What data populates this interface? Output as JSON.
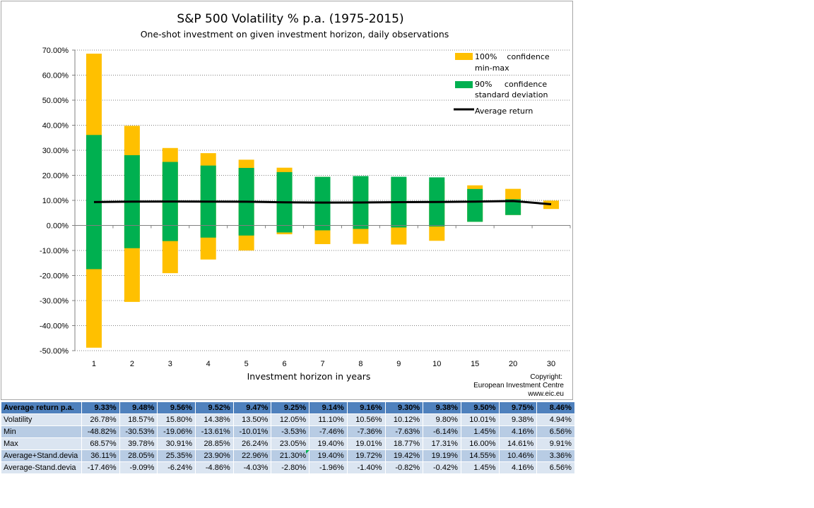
{
  "chart_data": {
    "type": "bar",
    "title": "S&P 500 Volatility % p.a. (1975-2015)",
    "subtitle": "One-shot investment on given investment horizon, daily observations",
    "xlabel": "Investment horizon in years",
    "ylabel": "",
    "categories": [
      "1",
      "2",
      "3",
      "4",
      "5",
      "6",
      "7",
      "8",
      "9",
      "10",
      "15",
      "20",
      "30"
    ],
    "ylim": [
      -50,
      70
    ],
    "yticks": [
      "-50.00%",
      "-40.00%",
      "-30.00%",
      "-20.00%",
      "-10.00%",
      "0.00%",
      "10.00%",
      "20.00%",
      "30.00%",
      "40.00%",
      "50.00%",
      "60.00%",
      "70.00%"
    ],
    "grid": true,
    "legend_position": "top-right",
    "legend": [
      {
        "line1": "100%    confidence",
        "line2": "min-max",
        "color": "#ffc000",
        "kind": "box"
      },
      {
        "line1": "90%     confidence",
        "line2": "standard deviation",
        "color": "#00b050",
        "kind": "box"
      },
      {
        "line1": "Average return",
        "line2": "",
        "color": "#000000",
        "kind": "line"
      }
    ],
    "series": [
      {
        "name": "Average return",
        "values": [
          9.33,
          9.48,
          9.56,
          9.52,
          9.47,
          9.25,
          9.14,
          9.16,
          9.3,
          9.38,
          9.5,
          9.75,
          8.46
        ]
      },
      {
        "name": "Min",
        "values": [
          -48.82,
          -30.53,
          -19.06,
          -13.61,
          -10.01,
          -3.53,
          -7.46,
          -7.36,
          -7.63,
          -6.14,
          1.45,
          4.16,
          6.56
        ]
      },
      {
        "name": "Max",
        "values": [
          68.57,
          39.78,
          30.91,
          28.85,
          26.24,
          23.05,
          19.4,
          19.01,
          18.77,
          17.31,
          16.0,
          14.61,
          9.91
        ]
      },
      {
        "name": "Average+Stand.devia",
        "values": [
          36.11,
          28.05,
          25.35,
          23.9,
          22.96,
          21.3,
          19.4,
          19.72,
          19.42,
          19.19,
          14.55,
          10.46,
          3.36
        ]
      },
      {
        "name": "Average-Stand.devia",
        "values": [
          -17.46,
          -9.09,
          -6.24,
          -4.86,
          -4.03,
          -2.8,
          -1.96,
          -1.4,
          -0.82,
          -0.42,
          1.45,
          4.16,
          6.56
        ]
      }
    ],
    "colors": {
      "minmax": "#ffc000",
      "stddev": "#00b050",
      "average": "#000000",
      "grid": "#808080"
    },
    "copyright": [
      "Copyright:",
      "European Investment Centre",
      "www.eic.eu"
    ]
  },
  "table": {
    "header": {
      "label": "Average return p.a.",
      "values": [
        "9.33%",
        "9.48%",
        "9.56%",
        "9.52%",
        "9.47%",
        "9.25%",
        "9.14%",
        "9.16%",
        "9.30%",
        "9.38%",
        "9.50%",
        "9.75%",
        "8.46%"
      ]
    },
    "rows": [
      {
        "label": "Volatility",
        "values": [
          "26.78%",
          "18.57%",
          "15.80%",
          "14.38%",
          "13.50%",
          "12.05%",
          "11.10%",
          "10.56%",
          "10.12%",
          "9.80%",
          "10.01%",
          "9.38%",
          "4.94%"
        ]
      },
      {
        "label": "Min",
        "values": [
          "-48.82%",
          "-30.53%",
          "-19.06%",
          "-13.61%",
          "-10.01%",
          "-3.53%",
          "-7.46%",
          "-7.36%",
          "-7.63%",
          "-6.14%",
          "1.45%",
          "4.16%",
          "6.56%"
        ]
      },
      {
        "label": "Max",
        "values": [
          "68.57%",
          "39.78%",
          "30.91%",
          "28.85%",
          "26.24%",
          "23.05%",
          "19.40%",
          "19.01%",
          "18.77%",
          "17.31%",
          "16.00%",
          "14.61%",
          "9.91%"
        ]
      },
      {
        "label": "Average+Stand.devia",
        "values": [
          "36.11%",
          "28.05%",
          "25.35%",
          "23.90%",
          "22.96%",
          "21.30%",
          "19.40%",
          "19.72%",
          "19.42%",
          "19.19%",
          "14.55%",
          "10.46%",
          "3.36%"
        ]
      },
      {
        "label": "Average-Stand.devia",
        "values": [
          "-17.46%",
          "-9.09%",
          "-6.24%",
          "-4.86%",
          "-4.03%",
          "-2.80%",
          "-1.96%",
          "-1.40%",
          "-0.82%",
          "-0.42%",
          "1.45%",
          "4.16%",
          "6.56%"
        ]
      }
    ]
  }
}
